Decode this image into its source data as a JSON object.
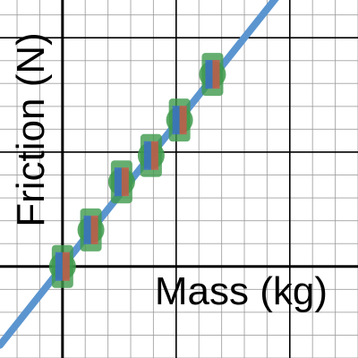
{
  "chart_data": {
    "type": "scatter",
    "xlabel": "Mass (kg)",
    "ylabel": "Friction (N)",
    "xlim": [
      -0.55,
      2.6
    ],
    "ylim": [
      -0.8,
      2.33
    ],
    "grid": true,
    "points": [
      {
        "x": 0.0,
        "y": 0.0
      },
      {
        "x": 0.25,
        "y": 0.32
      },
      {
        "x": 0.52,
        "y": 0.74
      },
      {
        "x": 0.78,
        "y": 0.97
      },
      {
        "x": 1.03,
        "y": 1.28
      },
      {
        "x": 1.32,
        "y": 1.68
      }
    ],
    "fit_line": {
      "slope": 1.25,
      "intercept": 0.0
    },
    "colors": {
      "fit_line": "#5b95d0",
      "marker_green": "#3f9a4c",
      "marker_blue": "#3a6ad6",
      "marker_red": "#d4524b",
      "grid_minor": "#999999",
      "axis": "#000000"
    }
  }
}
